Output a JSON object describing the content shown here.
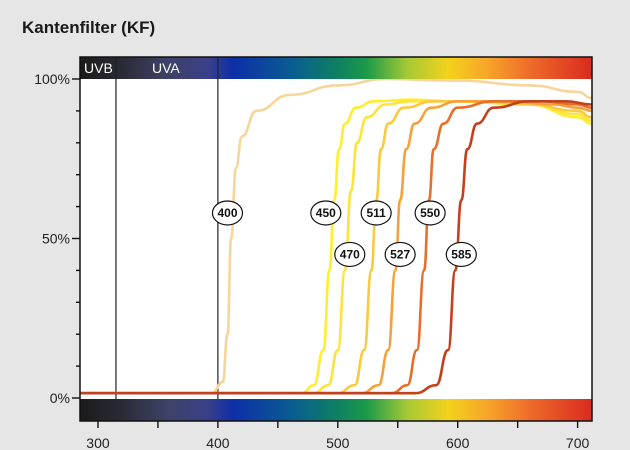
{
  "title": "Kantenfilter (KF)",
  "chart_data": {
    "type": "line",
    "title": "Kantenfilter (KF)",
    "xlabel": "",
    "ylabel": "",
    "xlim": [
      285,
      712
    ],
    "ylim": [
      0,
      100
    ],
    "x_ticks": [
      300,
      400,
      500,
      600,
      700
    ],
    "x_minor_ticks": [
      350,
      450,
      550,
      650
    ],
    "y_ticks": [
      {
        "value": 100,
        "label": "100%"
      },
      {
        "value": 50,
        "label": "50%"
      },
      {
        "value": 0,
        "label": "0%"
      }
    ],
    "grid": false,
    "regions": [
      {
        "label": "UVB",
        "x_start": 285,
        "x_end": 315
      },
      {
        "label": "UVA",
        "x_start": 315,
        "x_end": 400
      }
    ],
    "series": [
      {
        "name": "400",
        "color": "#f7d59a",
        "label_at": [
          408,
          58
        ],
        "x": [
          285,
          395,
          404,
          408,
          411,
          415,
          420,
          432,
          460,
          500,
          540,
          600,
          660,
          700,
          712
        ],
        "y": [
          1.5,
          1.5,
          5,
          20,
          50,
          72,
          82,
          90,
          95,
          98,
          100,
          99.5,
          98,
          96,
          94
        ]
      },
      {
        "name": "450",
        "color": "#ffee2e",
        "label_at": [
          490,
          58
        ],
        "x": [
          285,
          470,
          480,
          488,
          493,
          497,
          501,
          506,
          515,
          530,
          560,
          600,
          660,
          700,
          712
        ],
        "y": [
          1.5,
          1.5,
          4,
          15,
          40,
          62,
          78,
          86,
          91,
          93,
          93.5,
          93,
          92,
          88,
          86
        ]
      },
      {
        "name": "470",
        "color": "#fde33a",
        "label_at": [
          510,
          45
        ],
        "x": [
          285,
          480,
          492,
          500,
          506,
          511,
          516,
          524,
          540,
          560,
          600,
          660,
          700,
          712
        ],
        "y": [
          1.5,
          1.5,
          4,
          15,
          40,
          65,
          80,
          88,
          92,
          93,
          93,
          92,
          89,
          87
        ]
      },
      {
        "name": "511",
        "color": "#fbc93c",
        "label_at": [
          532,
          58
        ],
        "x": [
          285,
          500,
          514,
          522,
          528,
          532,
          536,
          542,
          555,
          580,
          620,
          660,
          700,
          712
        ],
        "y": [
          1.5,
          1.5,
          4,
          15,
          40,
          62,
          78,
          86,
          91,
          93,
          93,
          92,
          90,
          88
        ]
      },
      {
        "name": "527",
        "color": "#f7a03a",
        "label_at": [
          552,
          45
        ],
        "x": [
          285,
          520,
          534,
          542,
          548,
          552,
          557,
          564,
          578,
          600,
          640,
          680,
          700,
          712
        ],
        "y": [
          1.5,
          1.5,
          4,
          15,
          40,
          62,
          78,
          86,
          91,
          93,
          93,
          92,
          91,
          90
        ]
      },
      {
        "name": "550",
        "color": "#e86f2a",
        "label_at": [
          577,
          58
        ],
        "x": [
          285,
          545,
          558,
          566,
          572,
          576,
          580,
          588,
          600,
          630,
          670,
          700,
          712
        ],
        "y": [
          1.5,
          1.5,
          4,
          15,
          40,
          62,
          78,
          86,
          91,
          93,
          93,
          92,
          91
        ]
      },
      {
        "name": "585",
        "color": "#c3401c",
        "label_at": [
          603,
          45
        ],
        "x": [
          285,
          565,
          582,
          592,
          598,
          603,
          608,
          616,
          630,
          660,
          690,
          712
        ],
        "y": [
          1.5,
          1.5,
          4,
          15,
          40,
          62,
          78,
          86,
          91,
          93,
          93,
          92
        ]
      }
    ]
  }
}
